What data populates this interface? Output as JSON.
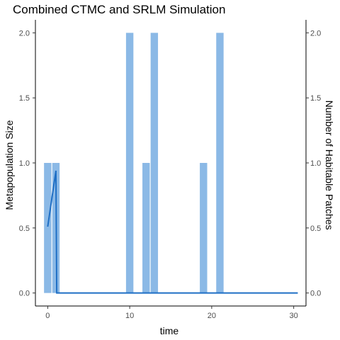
{
  "chart_data": {
    "type": "bar",
    "title": "Combined CTMC and SRLM Simulation",
    "xlabel": "time",
    "ylabel": "Metapopulation Size",
    "ylabel_right": "Number of Habitable Patches",
    "xlim": [
      -1.5,
      31.5
    ],
    "ylim": [
      -0.1,
      2.1
    ],
    "x_ticks": [
      "0",
      "10",
      "20",
      "30"
    ],
    "y_ticks": [
      "0.0",
      "0.5",
      "1.0",
      "1.5",
      "2.0"
    ],
    "y_ticks_right": [
      "0.0",
      "0.5",
      "1.0",
      "1.5",
      "2.0"
    ],
    "grid": false,
    "bar_color": "#8bb9e6",
    "line_color": "#1f6fc5",
    "bars": {
      "name": "Number of Habitable Patches",
      "x": [
        0,
        1,
        10,
        11,
        12,
        13,
        19,
        20,
        21
      ],
      "values": [
        1,
        1,
        2,
        0,
        1,
        2,
        1,
        0,
        2
      ]
    },
    "line": {
      "name": "Metapopulation Size",
      "x": [
        0,
        1,
        1.1,
        2,
        5,
        10,
        15,
        20,
        25,
        30.5
      ],
      "values": [
        0.51,
        0.94,
        0.0,
        0.0,
        0.0,
        0.0,
        0.0,
        0.0,
        0.0,
        0.0
      ]
    }
  }
}
